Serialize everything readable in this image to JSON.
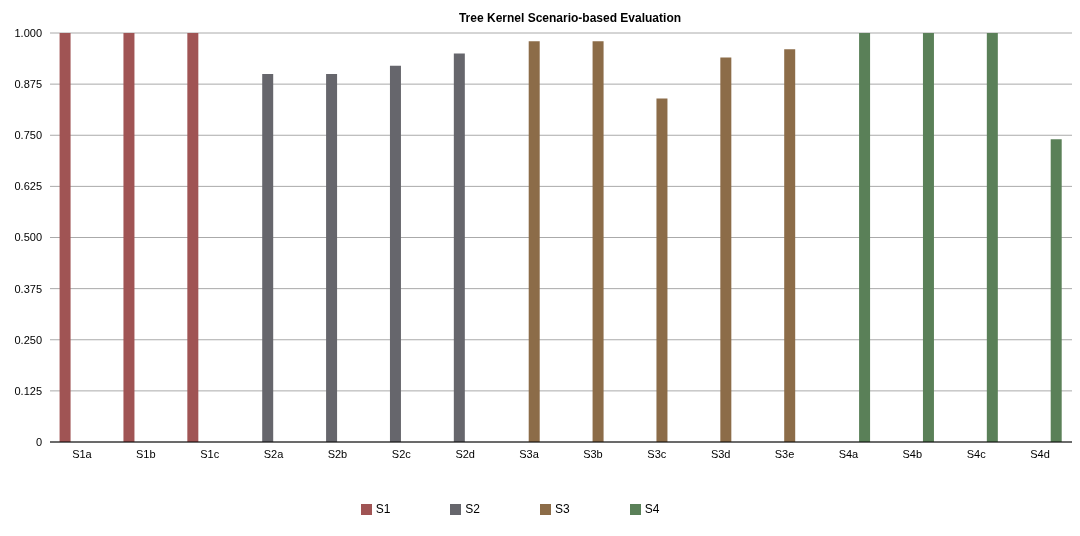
{
  "chart_data": {
    "type": "bar",
    "title": "Tree Kernel Scenario-based Evaluation",
    "categories": [
      "S1a",
      "S1b",
      "S1c",
      "S2a",
      "S2b",
      "S2c",
      "S2d",
      "S3a",
      "S3b",
      "S3c",
      "S3d",
      "S3e",
      "S4a",
      "S4b",
      "S4c",
      "S4d"
    ],
    "series": [
      {
        "name": "S1",
        "color": "#a05454",
        "values": [
          1,
          1,
          1,
          null,
          null,
          null,
          null,
          null,
          null,
          null,
          null,
          null,
          null,
          null,
          null,
          null
        ]
      },
      {
        "name": "S2",
        "color": "#66666c",
        "values": [
          null,
          null,
          null,
          0.9,
          0.9,
          0.92,
          0.95,
          null,
          null,
          null,
          null,
          null,
          null,
          null,
          null,
          null
        ]
      },
      {
        "name": "S3",
        "color": "#8c6c48",
        "values": [
          null,
          null,
          null,
          null,
          null,
          null,
          null,
          0.98,
          0.98,
          0.84,
          0.94,
          0.96,
          null,
          null,
          null,
          null
        ]
      },
      {
        "name": "S4",
        "color": "#5a8058",
        "values": [
          null,
          null,
          null,
          null,
          null,
          null,
          null,
          null,
          null,
          null,
          null,
          null,
          1,
          1,
          1,
          0.74
        ]
      }
    ],
    "ylim": [
      0,
      1
    ],
    "yticks": [
      0,
      0.125,
      {
        "value": 0.25,
        "label": "0.250"
      },
      0.375,
      {
        "value": 0.5,
        "label": "0.500"
      },
      0.625,
      {
        "value": 0.75,
        "label": "0.750"
      },
      0.875,
      {
        "value": 1,
        "label": "1.000"
      }
    ],
    "grid": "y",
    "legend": "bottom"
  }
}
